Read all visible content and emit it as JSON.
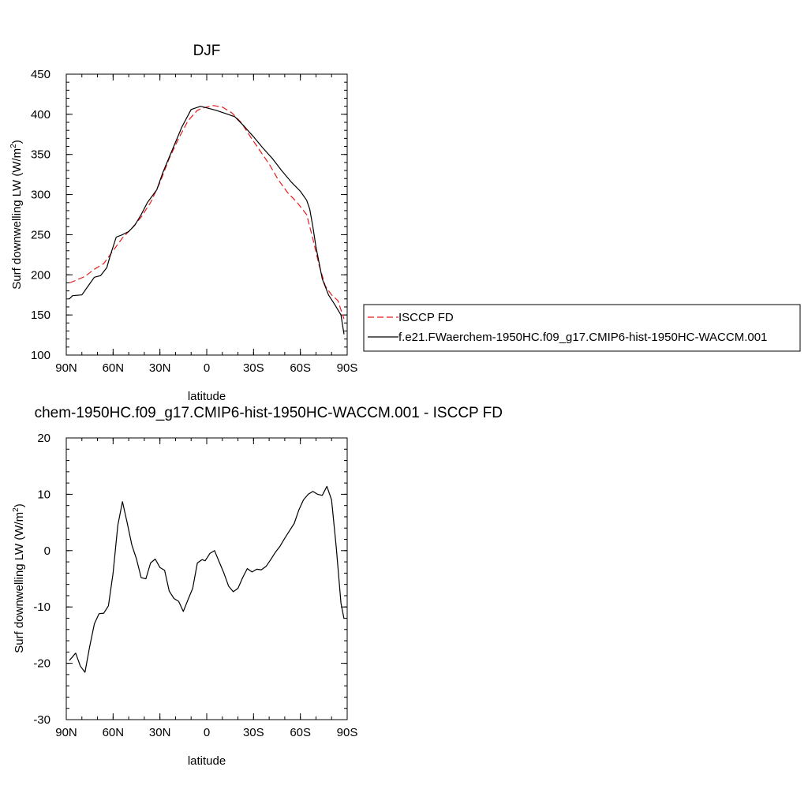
{
  "colors": {
    "obs": "#e41a1c",
    "model": "#000000",
    "axis": "#000000"
  },
  "chart_data": [
    {
      "type": "line",
      "title": "DJF",
      "xlabel": "latitude",
      "ylabel": "Surf downwelling LW (W/m",
      "ylabel_sup": "2",
      "ylabel_end": ")",
      "xlim": [
        -90,
        90
      ],
      "ylim": [
        100,
        450
      ],
      "x_ticks": [
        {
          "value": -90,
          "label": "90N"
        },
        {
          "value": -60,
          "label": "60N"
        },
        {
          "value": -30,
          "label": "30N"
        },
        {
          "value": 0,
          "label": "0"
        },
        {
          "value": 30,
          "label": "30S"
        },
        {
          "value": 60,
          "label": "60S"
        },
        {
          "value": 90,
          "label": "90S"
        }
      ],
      "y_ticks": [
        {
          "value": 100,
          "label": "100"
        },
        {
          "value": 150,
          "label": "150"
        },
        {
          "value": 200,
          "label": "200"
        },
        {
          "value": 250,
          "label": "250"
        },
        {
          "value": 300,
          "label": "300"
        },
        {
          "value": 350,
          "label": "350"
        },
        {
          "value": 400,
          "label": "400"
        },
        {
          "value": 450,
          "label": "450"
        }
      ],
      "grid": false,
      "legend_position": "right",
      "series": [
        {
          "name": "ISCCP FD",
          "color": "#e41a1c",
          "style": "dashed",
          "x": [
            -88,
            -84,
            -78,
            -72,
            -66,
            -60,
            -54,
            -48,
            -42,
            -36,
            -30,
            -24,
            -18,
            -12,
            -6,
            -2,
            4,
            10,
            16,
            22,
            28,
            34,
            40,
            46,
            52,
            58,
            64,
            68,
            72,
            76,
            80,
            84,
            88
          ],
          "y": [
            190,
            193,
            198,
            207,
            214,
            230,
            246,
            258,
            272,
            290,
            315,
            345,
            370,
            392,
            405,
            408,
            411,
            409,
            402,
            390,
            372,
            355,
            338,
            318,
            302,
            290,
            275,
            245,
            212,
            186,
            175,
            168,
            145
          ]
        },
        {
          "name": "f.e21.FWaerchem-1950HC.f09_g17.CMIP6-hist-1950HC-WACCM.001",
          "color": "#000000",
          "style": "solid",
          "x": [
            -88,
            -86,
            -80,
            -76,
            -72,
            -68,
            -64,
            -62,
            -58,
            -54,
            -50,
            -46,
            -42,
            -38,
            -32,
            -28,
            -22,
            -16,
            -10,
            -4,
            0,
            6,
            12,
            18,
            24,
            30,
            36,
            42,
            48,
            54,
            60,
            64,
            66,
            68,
            70,
            74,
            78,
            82,
            86,
            88
          ],
          "y": [
            170,
            174,
            175,
            186,
            197,
            199,
            209,
            223,
            247,
            250,
            254,
            262,
            275,
            290,
            306,
            328,
            356,
            384,
            406,
            410,
            408,
            405,
            401,
            397,
            385,
            372,
            358,
            345,
            330,
            316,
            304,
            293,
            282,
            260,
            235,
            195,
            175,
            163,
            150,
            126
          ]
        }
      ]
    },
    {
      "type": "line",
      "title": "chem-1950HC.f09_g17.CMIP6-hist-1950HC-WACCM.001 - ISCCP FD",
      "xlabel": "latitude",
      "ylabel": "Surf downwelling LW (W/m",
      "ylabel_sup": "2",
      "ylabel_end": ")",
      "xlim": [
        -90,
        90
      ],
      "ylim": [
        -30,
        20
      ],
      "x_ticks": [
        {
          "value": -90,
          "label": "90N"
        },
        {
          "value": -60,
          "label": "60N"
        },
        {
          "value": -30,
          "label": "30N"
        },
        {
          "value": 0,
          "label": "0"
        },
        {
          "value": 30,
          "label": "30S"
        },
        {
          "value": 60,
          "label": "60S"
        },
        {
          "value": 90,
          "label": "90S"
        }
      ],
      "y_ticks": [
        {
          "value": -30,
          "label": "-30"
        },
        {
          "value": -20,
          "label": "-20"
        },
        {
          "value": -10,
          "label": "-10"
        },
        {
          "value": 0,
          "label": "0"
        },
        {
          "value": 10,
          "label": "10"
        },
        {
          "value": 20,
          "label": "20"
        }
      ],
      "grid": false,
      "series": [
        {
          "color": "#000000",
          "style": "solid",
          "x": [
            -88,
            -84,
            -81,
            -78,
            -75,
            -72,
            -69,
            -66,
            -63,
            -60,
            -57,
            -54,
            -51,
            -48,
            -45,
            -42,
            -39,
            -36,
            -33,
            -30,
            -27,
            -24,
            -21,
            -18,
            -15,
            -12,
            -9,
            -6,
            -3,
            -1,
            2,
            5,
            8,
            11,
            14,
            17,
            20,
            23,
            26,
            29,
            32,
            35,
            38,
            41,
            44,
            47,
            50,
            53,
            56,
            59,
            62,
            65,
            68,
            71,
            74,
            77,
            80,
            83,
            86,
            88
          ],
          "y": [
            -19.5,
            -18.2,
            -20.5,
            -21.6,
            -17,
            -13,
            -11.2,
            -11.1,
            -9.8,
            -4,
            4.5,
            8.7,
            5,
            1,
            -1.5,
            -4.8,
            -5,
            -2.2,
            -1.5,
            -3,
            -3.5,
            -7.2,
            -8.5,
            -9,
            -10.8,
            -8.7,
            -6.7,
            -2.2,
            -1.6,
            -1.8,
            -0.5,
            0,
            -2,
            -4,
            -6.3,
            -7.3,
            -6.7,
            -4.8,
            -3.2,
            -3.8,
            -3.3,
            -3.4,
            -2.8,
            -1.6,
            -0.3,
            0.8,
            2.2,
            3.5,
            4.8,
            7.2,
            9,
            10,
            10.5,
            10,
            9.8,
            11.4,
            9,
            0.5,
            -9.3,
            -12.1
          ]
        }
      ]
    }
  ],
  "legend": {
    "entries": [
      {
        "label": "ISCCP FD",
        "color": "#e41a1c",
        "style": "dashed"
      },
      {
        "label": "f.e21.FWaerchem-1950HC.f09_g17.CMIP6-hist-1950HC-WACCM.001",
        "color": "#000000",
        "style": "solid"
      }
    ]
  }
}
